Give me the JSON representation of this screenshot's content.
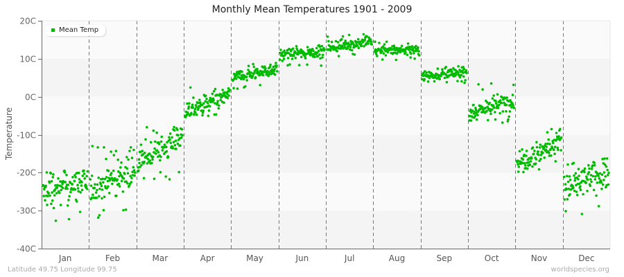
{
  "chart_data": {
    "type": "scatter",
    "title": "Monthly Mean Temperatures 1901 - 2009",
    "xlabel": "",
    "ylabel": "Temperature",
    "ylim": [
      -40,
      20
    ],
    "yticks": [
      "20C",
      "10C",
      "0C",
      "-10C",
      "-20C",
      "-30C",
      "-40C"
    ],
    "ytick_values": [
      20,
      10,
      0,
      -10,
      -20,
      -30,
      -40
    ],
    "categories": [
      "Jan",
      "Feb",
      "Mar",
      "Apr",
      "May",
      "Jun",
      "Jul",
      "Aug",
      "Sep",
      "Oct",
      "Nov",
      "Dec"
    ],
    "legend": [
      {
        "name": "Mean Temp",
        "color": "#00bb00"
      }
    ],
    "legend_position": "top-left",
    "grid": {
      "horizontal_bands": true,
      "vertical_dashed_separators": true
    },
    "points_per_month": 109,
    "series": [
      {
        "name": "Mean Temp",
        "color": "#00bb00",
        "monthly_summary": [
          {
            "month": "Jan",
            "mean": -25.0,
            "start": -25.5,
            "end": -22.5,
            "min": -33.0,
            "max": -19.5,
            "spread": 2.6
          },
          {
            "month": "Feb",
            "mean": -23.0,
            "start": -24.5,
            "end": -19.0,
            "min": -32.0,
            "max": -13.0,
            "spread": 2.6
          },
          {
            "month": "Mar",
            "mean": -14.0,
            "start": -17.0,
            "end": -11.0,
            "min": -22.0,
            "max": -8.0,
            "spread": 2.4
          },
          {
            "month": "Apr",
            "mean": -2.5,
            "start": -4.0,
            "end": 0.5,
            "min": -6.0,
            "max": 2.5,
            "spread": 1.5
          },
          {
            "month": "May",
            "mean": 6.0,
            "start": 5.0,
            "end": 7.5,
            "min": 2.0,
            "max": 9.0,
            "spread": 1.1
          },
          {
            "month": "Jun",
            "mean": 11.5,
            "start": 11.0,
            "end": 12.0,
            "min": 8.0,
            "max": 14.0,
            "spread": 0.9
          },
          {
            "month": "Jul",
            "mean": 13.5,
            "start": 13.0,
            "end": 14.5,
            "min": 10.5,
            "max": 16.5,
            "spread": 0.9
          },
          {
            "month": "Aug",
            "mean": 12.0,
            "start": 12.0,
            "end": 12.5,
            "min": 9.5,
            "max": 14.5,
            "spread": 0.8
          },
          {
            "month": "Sep",
            "mean": 6.0,
            "start": 5.5,
            "end": 6.5,
            "min": 3.5,
            "max": 8.0,
            "spread": 0.8
          },
          {
            "month": "Oct",
            "mean": -3.0,
            "start": -4.0,
            "end": -1.0,
            "min": -7.0,
            "max": 3.5,
            "spread": 1.6
          },
          {
            "month": "Nov",
            "mean": -15.0,
            "start": -17.0,
            "end": -12.0,
            "min": -21.0,
            "max": -8.5,
            "spread": 2.2
          },
          {
            "month": "Dec",
            "mean": -22.0,
            "start": -24.0,
            "end": -20.0,
            "min": -32.0,
            "max": -15.5,
            "spread": 2.6
          }
        ]
      }
    ]
  },
  "footer": {
    "location": "Latitude 49.75 Longitude 99.75",
    "source": "worldspecies.org"
  }
}
